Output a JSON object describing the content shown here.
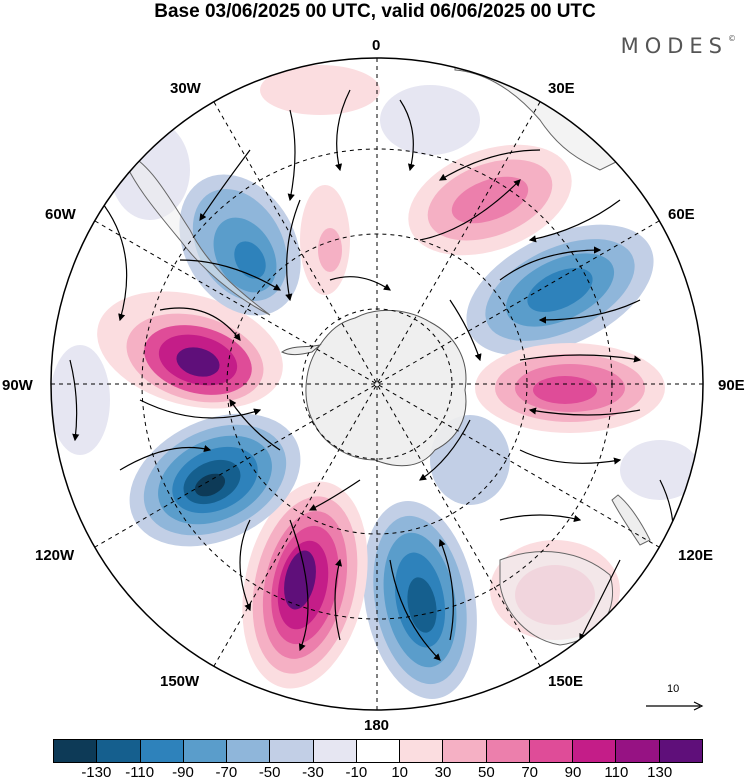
{
  "title": "Base 03/06/2025 00 UTC, valid 06/06/2025 00 UTC",
  "brand": "MODES",
  "brand_mark": "©",
  "longitude_labels": {
    "top": "0",
    "nne": "30E",
    "ene": "60E",
    "east": "90E",
    "ese": "120E",
    "sse": "150E",
    "bottom": "180",
    "ssw": "150W",
    "wsw": "120W",
    "west": "90W",
    "wnw": "60W",
    "nnw": "30W"
  },
  "reference_vector_label": "10",
  "colorbar": {
    "colors": [
      "#0d3a57",
      "#155f8e",
      "#2e82bb",
      "#5a9dcb",
      "#8fb6da",
      "#c2cfe6",
      "#e6e6f2",
      "#ffffff",
      "#fbdde0",
      "#f5b0c4",
      "#ec7fac",
      "#df4c98",
      "#c41d88",
      "#961283",
      "#5f0f7a"
    ],
    "tick_labels": [
      "-130",
      "-110",
      "-90",
      "-70",
      "-50",
      "-30",
      "-10",
      "10",
      "30",
      "50",
      "70",
      "90",
      "110",
      "130"
    ]
  },
  "map_colors": {
    "land": "#eeeeee",
    "ocean": "#ffffff",
    "contour": "#000000"
  }
}
